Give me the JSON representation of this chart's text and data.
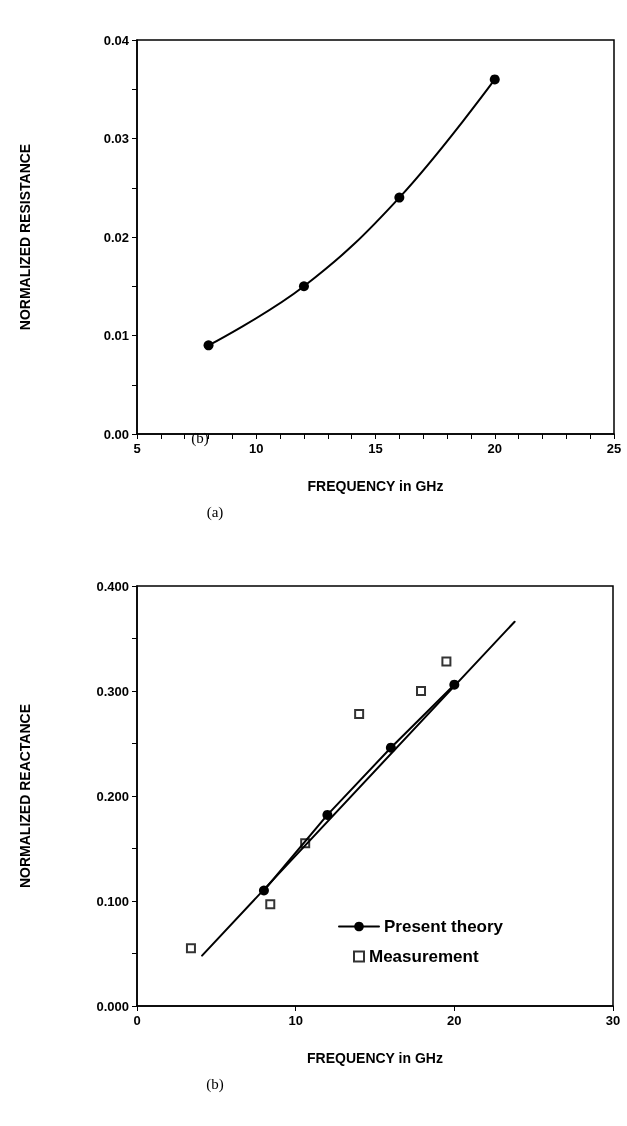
{
  "chart_data": [
    {
      "type": "line",
      "xlabel": "FREQUENCY in GHz",
      "ylabel": "NORMALIZED RESISTANCE",
      "annotations": [
        "(b)",
        "(a)"
      ],
      "xlim": [
        5,
        25
      ],
      "xticks": [
        5,
        {
          "value": 6,
          "label": null
        },
        {
          "value": 7,
          "label": null
        },
        {
          "value": 8,
          "label": null
        },
        {
          "value": 9,
          "label": null
        },
        10,
        {
          "value": 11,
          "label": null
        },
        {
          "value": 12,
          "label": null
        },
        {
          "value": 13,
          "label": null
        },
        {
          "value": 14,
          "label": null
        },
        15,
        {
          "value": 16,
          "label": null
        },
        {
          "value": 17,
          "label": null
        },
        {
          "value": 18,
          "label": null
        },
        {
          "value": 19,
          "label": null
        },
        20,
        {
          "value": 21,
          "label": null
        },
        {
          "value": 22,
          "label": null
        },
        {
          "value": 23,
          "label": null
        },
        {
          "value": 24,
          "label": null
        },
        25
      ],
      "ylim": [
        0,
        0.04
      ],
      "yticks": [
        {
          "value": 0,
          "label": "0.00"
        },
        {
          "value": 0.005,
          "label": null
        },
        {
          "value": 0.01,
          "label": "0.01"
        },
        {
          "value": 0.015,
          "label": null
        },
        {
          "value": 0.02,
          "label": "0.02"
        },
        {
          "value": 0.025,
          "label": null
        },
        {
          "value": 0.03,
          "label": "0.03"
        },
        {
          "value": 0.035,
          "label": null
        },
        {
          "value": 0.04,
          "label": "0.04"
        }
      ],
      "grid": false,
      "legend": false,
      "marker": "circle",
      "line_style": "solid",
      "series": [
        {
          "color": "#000000",
          "x": [
            8,
            12,
            16,
            20
          ],
          "values": [
            0.009,
            0.015,
            0.024,
            0.036
          ]
        }
      ]
    },
    {
      "type": "scatter",
      "xlabel": "FREQUENCY in GHz",
      "ylabel": "NORMALIZED REACTANCE",
      "annotations": [
        "(b)"
      ],
      "xlim": [
        0,
        30
      ],
      "xticks": [
        0,
        10,
        20,
        30
      ],
      "ylim": [
        0,
        0.4
      ],
      "yticks": [
        {
          "value": 0,
          "label": "0.000"
        },
        {
          "value": 0.05,
          "label": null
        },
        {
          "value": 0.1,
          "label": "0.100"
        },
        {
          "value": 0.15,
          "label": null
        },
        {
          "value": 0.2,
          "label": "0.200"
        },
        {
          "value": 0.25,
          "label": null
        },
        {
          "value": 0.3,
          "label": "0.300"
        },
        {
          "value": 0.35,
          "label": null
        },
        {
          "value": 0.4,
          "label": "0.400"
        }
      ],
      "grid": false,
      "legend": "bottom right",
      "series": [
        {
          "name": "Present theory",
          "type": "line",
          "marker": "circle",
          "line_style": "solid",
          "color": "#000000",
          "x": [
            8,
            12,
            16,
            20
          ],
          "values": [
            0.11,
            0.182,
            0.246,
            0.306
          ]
        },
        {
          "type": "line",
          "marker": "none",
          "line_style": "solid",
          "color": "#000000",
          "x": [
            4.1,
            23.8
          ],
          "values": [
            0.048,
            0.366
          ]
        },
        {
          "name": "Measurement",
          "marker": "square",
          "color": "#000000",
          "x": [
            3.4,
            8.4,
            10.6,
            14.0,
            17.9,
            19.5
          ],
          "values": [
            0.055,
            0.097,
            0.155,
            0.278,
            0.3,
            0.328
          ]
        }
      ]
    }
  ]
}
